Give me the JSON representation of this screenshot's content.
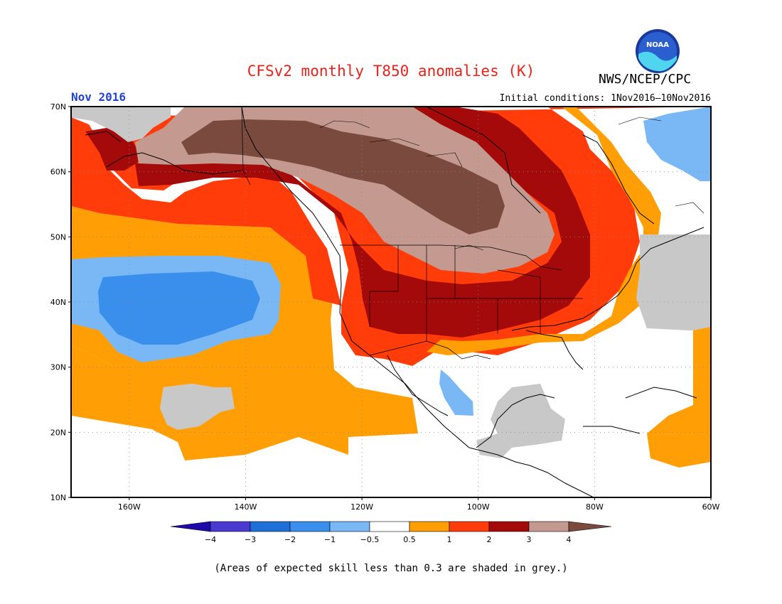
{
  "header": {
    "title": "CFSv2 monthly T850 anomalies (K)",
    "month": "Nov 2016",
    "initial_conditions": "Initial conditions: 1Nov2016–10Nov2016",
    "agency": "NWS/NCEP/CPC",
    "logo_text": "NOAA"
  },
  "footnote": "(Areas of expected skill less than 0.3 are shaded in grey.)",
  "colors": {
    "lt_neg4": "#1e0aa8",
    "neg4_neg3": "#4a3ad0",
    "neg3_neg2": "#1f6fd8",
    "neg2_neg1": "#3b8fec",
    "neg1_neg05": "#7ab8f5",
    "neutral": "#ffffff",
    "p05_1": "#ff9e05",
    "p1_2": "#ff3c0a",
    "p2_3": "#a50a0a",
    "p3_4": "#c49a90",
    "gt4": "#7a4a3e",
    "grey_skill": "#c8c8c8",
    "title": "#e8221a",
    "month": "#2244cc"
  },
  "map": {
    "lat_labels": [
      "70N",
      "60N",
      "50N",
      "40N",
      "30N",
      "20N",
      "10N"
    ],
    "lon_labels": [
      "160W",
      "140W",
      "120W",
      "100W",
      "80W",
      "60W"
    ],
    "extent": {
      "lon_min": -170,
      "lon_max": -60,
      "lat_min": 10,
      "lat_max": 70
    }
  },
  "colorbar": {
    "tick_labels": [
      "−4",
      "−3",
      "−2",
      "−1",
      "−0.5",
      "0.5",
      "1",
      "2",
      "3",
      "4"
    ],
    "categories": [
      "<-4",
      "-4 to -3",
      "-3 to -2",
      "-2 to -1",
      "-1 to -0.5",
      "-0.5 to 0.5",
      "0.5 to 1",
      "1 to 2",
      "2 to 3",
      "3 to 4",
      ">4"
    ]
  }
}
